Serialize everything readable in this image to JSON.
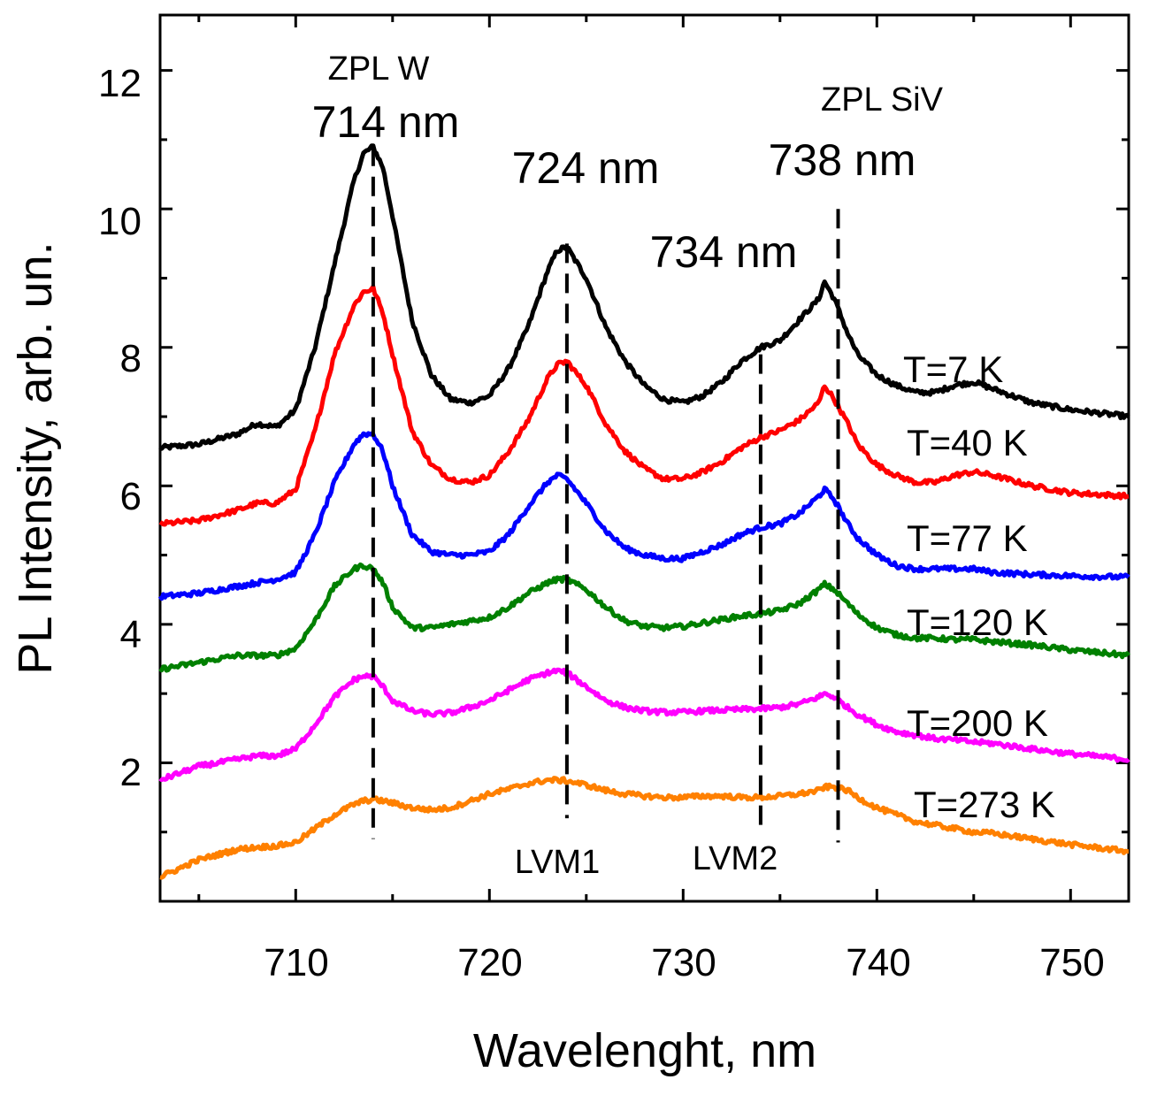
{
  "chart_data": {
    "type": "line",
    "xlabel": "Wavelenght, nm",
    "ylabel": "PL Intensity, arb. un.",
    "xlim": [
      703,
      753
    ],
    "ylim": [
      0,
      12.8
    ],
    "xticks": [
      710,
      720,
      730,
      740,
      750
    ],
    "yticks": [
      2,
      4,
      6,
      8,
      10,
      12
    ],
    "grid": false,
    "series": [
      {
        "name": "T=7 K",
        "color": "#000000",
        "x": [
          703,
          705,
          707,
          708,
          709,
          710,
          711,
          712,
          713,
          713.5,
          714,
          714.5,
          715,
          716,
          717,
          718,
          719,
          720,
          721,
          722,
          723,
          723.5,
          724,
          725,
          726,
          727,
          728,
          729,
          730,
          731,
          732,
          733,
          734,
          735,
          736,
          737,
          737.3,
          737.8,
          738.5,
          739,
          740,
          741,
          742,
          743,
          744,
          745,
          746,
          748,
          750,
          753
        ],
        "y": [
          6.55,
          6.6,
          6.75,
          6.9,
          6.85,
          7.1,
          8.0,
          9.2,
          10.4,
          10.8,
          10.9,
          10.6,
          9.9,
          8.4,
          7.6,
          7.25,
          7.2,
          7.3,
          7.7,
          8.3,
          9.1,
          9.4,
          9.45,
          9.0,
          8.3,
          7.8,
          7.45,
          7.25,
          7.2,
          7.3,
          7.5,
          7.8,
          8.0,
          8.1,
          8.4,
          8.7,
          8.95,
          8.7,
          8.2,
          7.9,
          7.6,
          7.45,
          7.35,
          7.35,
          7.45,
          7.5,
          7.4,
          7.2,
          7.1,
          7.0
        ]
      },
      {
        "name": "T=40 K",
        "color": "#ff0000",
        "x": [
          703,
          705,
          707,
          708,
          709,
          710,
          711,
          712,
          713,
          713.5,
          714,
          714.5,
          715,
          716,
          717,
          718,
          719,
          720,
          721,
          722,
          723,
          723.5,
          724,
          725,
          726,
          727,
          728,
          729,
          730,
          731,
          732,
          733,
          734,
          735,
          736,
          737,
          737.3,
          737.8,
          738.5,
          739,
          740,
          741,
          742,
          743,
          744,
          745,
          746,
          748,
          750,
          753
        ],
        "y": [
          5.45,
          5.5,
          5.65,
          5.75,
          5.75,
          5.95,
          6.8,
          7.9,
          8.6,
          8.8,
          8.85,
          8.5,
          7.9,
          6.8,
          6.3,
          6.1,
          6.05,
          6.15,
          6.5,
          6.95,
          7.55,
          7.75,
          7.8,
          7.45,
          6.9,
          6.5,
          6.25,
          6.1,
          6.1,
          6.2,
          6.35,
          6.55,
          6.7,
          6.8,
          6.95,
          7.2,
          7.45,
          7.25,
          6.9,
          6.6,
          6.3,
          6.15,
          6.05,
          6.05,
          6.15,
          6.2,
          6.15,
          6.0,
          5.9,
          5.85
        ]
      },
      {
        "name": "T=77 K",
        "color": "#0000ff",
        "x": [
          703,
          705,
          707,
          708,
          709,
          710,
          711,
          712,
          713,
          713.5,
          714,
          714.5,
          715,
          716,
          717,
          718,
          719,
          720,
          721,
          722,
          723,
          723.5,
          724,
          725,
          726,
          727,
          728,
          729,
          730,
          731,
          732,
          733,
          734,
          735,
          736,
          737,
          737.3,
          737.8,
          738.5,
          739,
          740,
          741,
          742,
          743,
          744,
          745,
          746,
          748,
          750,
          753
        ],
        "y": [
          4.4,
          4.45,
          4.55,
          4.6,
          4.65,
          4.75,
          5.3,
          6.05,
          6.6,
          6.75,
          6.75,
          6.5,
          6.0,
          5.3,
          5.05,
          5.0,
          5.0,
          5.05,
          5.3,
          5.7,
          6.05,
          6.15,
          6.1,
          5.75,
          5.35,
          5.1,
          5.0,
          4.95,
          4.95,
          5.05,
          5.15,
          5.3,
          5.4,
          5.45,
          5.6,
          5.85,
          5.95,
          5.8,
          5.45,
          5.25,
          5.0,
          4.85,
          4.8,
          4.8,
          4.8,
          4.8,
          4.75,
          4.72,
          4.7,
          4.68
        ]
      },
      {
        "name": "T=120 K",
        "color": "#008000",
        "x": [
          703,
          705,
          707,
          708,
          709,
          710,
          711,
          712,
          713,
          713.5,
          714,
          714.5,
          715,
          716,
          717,
          718,
          719,
          720,
          721,
          722,
          723,
          723.5,
          724,
          725,
          726,
          727,
          728,
          729,
          730,
          731,
          732,
          733,
          734,
          735,
          736,
          737,
          737.3,
          737.8,
          738.5,
          739,
          740,
          741,
          742,
          743,
          744,
          745,
          746,
          748,
          750,
          753
        ],
        "y": [
          3.35,
          3.45,
          3.55,
          3.55,
          3.55,
          3.65,
          4.05,
          4.55,
          4.8,
          4.85,
          4.8,
          4.6,
          4.25,
          3.95,
          3.95,
          4.0,
          4.05,
          4.1,
          4.25,
          4.45,
          4.6,
          4.65,
          4.65,
          4.5,
          4.25,
          4.05,
          3.97,
          3.95,
          3.97,
          4.02,
          4.07,
          4.12,
          4.15,
          4.2,
          4.3,
          4.5,
          4.58,
          4.5,
          4.3,
          4.15,
          3.95,
          3.85,
          3.8,
          3.8,
          3.78,
          3.78,
          3.75,
          3.7,
          3.63,
          3.55
        ]
      },
      {
        "name": "T=200 K",
        "color": "#ff00ff",
        "x": [
          703,
          705,
          707,
          708,
          709,
          710,
          711,
          712,
          713,
          713.5,
          714,
          714.5,
          715,
          716,
          717,
          718,
          719,
          720,
          721,
          722,
          723,
          723.5,
          724,
          725,
          726,
          727,
          728,
          729,
          730,
          731,
          732,
          733,
          734,
          735,
          736,
          737,
          737.3,
          737.8,
          738.5,
          739,
          740,
          741,
          742,
          743,
          744,
          745,
          746,
          748,
          750,
          753
        ],
        "y": [
          1.75,
          1.95,
          2.05,
          2.1,
          2.1,
          2.2,
          2.55,
          2.95,
          3.2,
          3.25,
          3.25,
          3.1,
          2.9,
          2.75,
          2.7,
          2.72,
          2.8,
          2.9,
          3.05,
          3.2,
          3.3,
          3.33,
          3.3,
          3.1,
          2.9,
          2.8,
          2.75,
          2.73,
          2.73,
          2.75,
          2.76,
          2.77,
          2.78,
          2.8,
          2.85,
          2.95,
          3.0,
          2.95,
          2.8,
          2.7,
          2.55,
          2.45,
          2.4,
          2.35,
          2.33,
          2.3,
          2.28,
          2.2,
          2.13,
          2.05
        ]
      },
      {
        "name": "T=273 K",
        "color": "#ff8000",
        "x": [
          703,
          705,
          707,
          708,
          709,
          710,
          711,
          712,
          713,
          713.5,
          714,
          714.5,
          715,
          716,
          717,
          718,
          719,
          720,
          721,
          722,
          723,
          723.5,
          724,
          725,
          726,
          727,
          728,
          729,
          730,
          731,
          732,
          733,
          734,
          735,
          736,
          737,
          737.3,
          737.8,
          738.5,
          739,
          740,
          741,
          742,
          743,
          744,
          745,
          746,
          748,
          750,
          753
        ],
        "y": [
          0.35,
          0.6,
          0.75,
          0.78,
          0.8,
          0.85,
          1.05,
          1.25,
          1.4,
          1.45,
          1.47,
          1.45,
          1.42,
          1.35,
          1.32,
          1.35,
          1.45,
          1.55,
          1.62,
          1.7,
          1.75,
          1.75,
          1.74,
          1.68,
          1.6,
          1.55,
          1.52,
          1.5,
          1.5,
          1.52,
          1.52,
          1.5,
          1.5,
          1.52,
          1.55,
          1.6,
          1.65,
          1.65,
          1.6,
          1.5,
          1.35,
          1.25,
          1.15,
          1.1,
          1.05,
          1.0,
          0.98,
          0.9,
          0.82,
          0.72
        ]
      }
    ],
    "reference_lines": [
      {
        "x": 714,
        "top": 10.9,
        "bottom": 0.9,
        "label": "714 nm",
        "sublabel": "ZPL W"
      },
      {
        "x": 724,
        "top": 9.5,
        "bottom": 1.2,
        "label": "724 nm",
        "sublabel": "LVM1"
      },
      {
        "x": 734,
        "top": 7.9,
        "bottom": 1.0,
        "label": "734 nm",
        "sublabel": "LVM2"
      },
      {
        "x": 738,
        "top": 10.0,
        "bottom": 0.85,
        "label": "738 nm",
        "sublabel": "ZPL SiV"
      }
    ]
  }
}
